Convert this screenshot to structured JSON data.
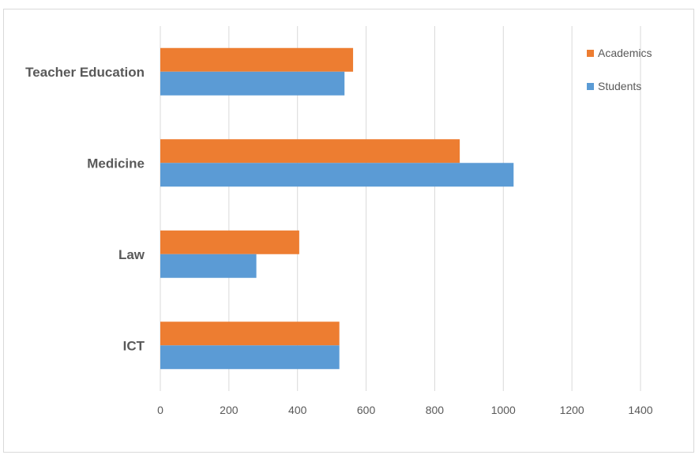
{
  "chart_data": {
    "type": "bar",
    "orientation": "horizontal",
    "categories": [
      "ICT",
      "Law",
      "Medicine",
      "Teacher Education"
    ],
    "series": [
      {
        "name": "Students",
        "values": [
          522,
          280,
          1030,
          537
        ],
        "color": "#5B9BD5"
      },
      {
        "name": "Academics",
        "values": [
          522,
          405,
          873,
          562
        ],
        "color": "#ED7D31"
      }
    ],
    "x_ticks": [
      0,
      200,
      400,
      600,
      800,
      1000,
      1200,
      1400
    ],
    "xlim": [
      0,
      1400
    ],
    "grid": true,
    "legend_position": "top-right",
    "legend_order": [
      "Academics",
      "Students"
    ],
    "title": "",
    "xlabel": "",
    "ylabel": ""
  }
}
